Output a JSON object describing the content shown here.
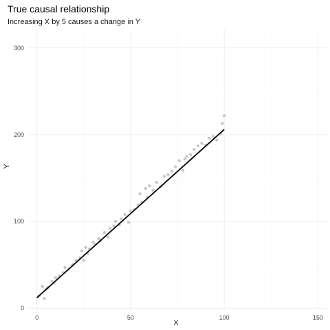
{
  "chart_data": {
    "type": "scatter",
    "title": "True causal relationship",
    "subtitle": "Increasing X by 5 causes a change in Y",
    "xlabel": "X",
    "ylabel": "Y",
    "xlim": [
      -5,
      155
    ],
    "ylim": [
      -3,
      322
    ],
    "x_ticks": [
      0,
      50,
      100,
      150
    ],
    "y_ticks": [
      0,
      100,
      200,
      300
    ],
    "grid": true,
    "point_color": "#c8c8c8",
    "line_color": "#000000",
    "series": [
      {
        "kind": "points",
        "x": [
          1,
          3,
          4,
          5,
          6,
          8,
          9,
          10,
          12,
          14,
          15,
          17,
          19,
          21,
          23,
          24,
          25,
          26,
          27,
          28,
          30,
          31,
          33,
          34,
          36,
          38,
          39,
          41,
          42,
          44,
          45,
          47,
          49,
          50,
          52,
          54,
          55,
          56,
          58,
          59,
          60,
          62,
          64,
          66,
          68,
          70,
          72,
          74,
          76,
          78,
          79,
          80,
          82,
          84,
          86,
          88,
          90,
          92,
          94,
          96,
          98,
          99,
          100
        ],
        "y": [
          14,
          25,
          11,
          22,
          24,
          31,
          29,
          35,
          37,
          41,
          47,
          45,
          50,
          55,
          58,
          66,
          55,
          70,
          63,
          68,
          76,
          74,
          80,
          78,
          87,
          82,
          92,
          95,
          100,
          96,
          103,
          108,
          99,
          112,
          114,
          119,
          132,
          122,
          138,
          128,
          141,
          136,
          145,
          140,
          152,
          154,
          158,
          163,
          170,
          159,
          172,
          175,
          177,
          183,
          187,
          190,
          188,
          196,
          198,
          194,
          201,
          213,
          222
        ]
      },
      {
        "kind": "line",
        "x": [
          0,
          100
        ],
        "y": [
          12,
          206
        ]
      }
    ]
  }
}
